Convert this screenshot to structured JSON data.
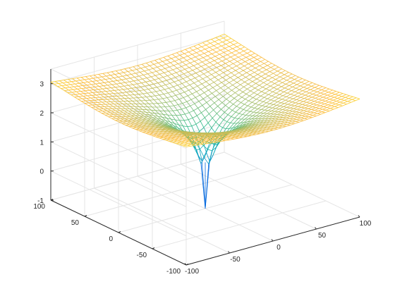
{
  "chart_data": {
    "type": "mesh",
    "surface": "log(x^2 + y^2)",
    "x": {
      "ticks": [
        "-100",
        "-50",
        "0",
        "50",
        "100"
      ],
      "range": [
        -100,
        100
      ]
    },
    "y": {
      "ticks": [
        "-100",
        "-50",
        "0",
        "50",
        "100"
      ],
      "range": [
        -100,
        100
      ]
    },
    "z": {
      "ticks": [
        "-1",
        "0",
        "1",
        "2",
        "3"
      ],
      "range": [
        -1,
        3.5
      ]
    },
    "grid_points_per_axis": 41,
    "min_z_at_center": -1,
    "colormap": "parula",
    "grid": true,
    "colors": {
      "axis": "#262626",
      "grid": "#e5e5e5",
      "background": "#ffffff"
    }
  }
}
